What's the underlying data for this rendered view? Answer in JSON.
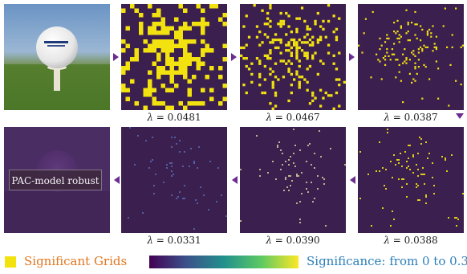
{
  "panels": {
    "p1": {
      "lambda": "0.0481"
    },
    "p2": {
      "lambda": "0.0467"
    },
    "p3": {
      "lambda": "0.0387"
    },
    "p4": {
      "lambda": "0.0331"
    },
    "p5": {
      "lambda": "0.0390"
    },
    "p6": {
      "lambda": "0.0388"
    }
  },
  "lambda_symbol": "λ",
  "equals": " = ",
  "pac_label": "PAC-model robust",
  "legend": {
    "significant_label": "Significant Grids",
    "range_label": "Significance: from 0 to 0.3"
  },
  "colors": {
    "significant": "#f2e20f",
    "background_grid": "#3b1f4f",
    "arrow": "#6b2c8f",
    "significant_text": "#e2761f",
    "range_text": "#2a7fb8"
  }
}
